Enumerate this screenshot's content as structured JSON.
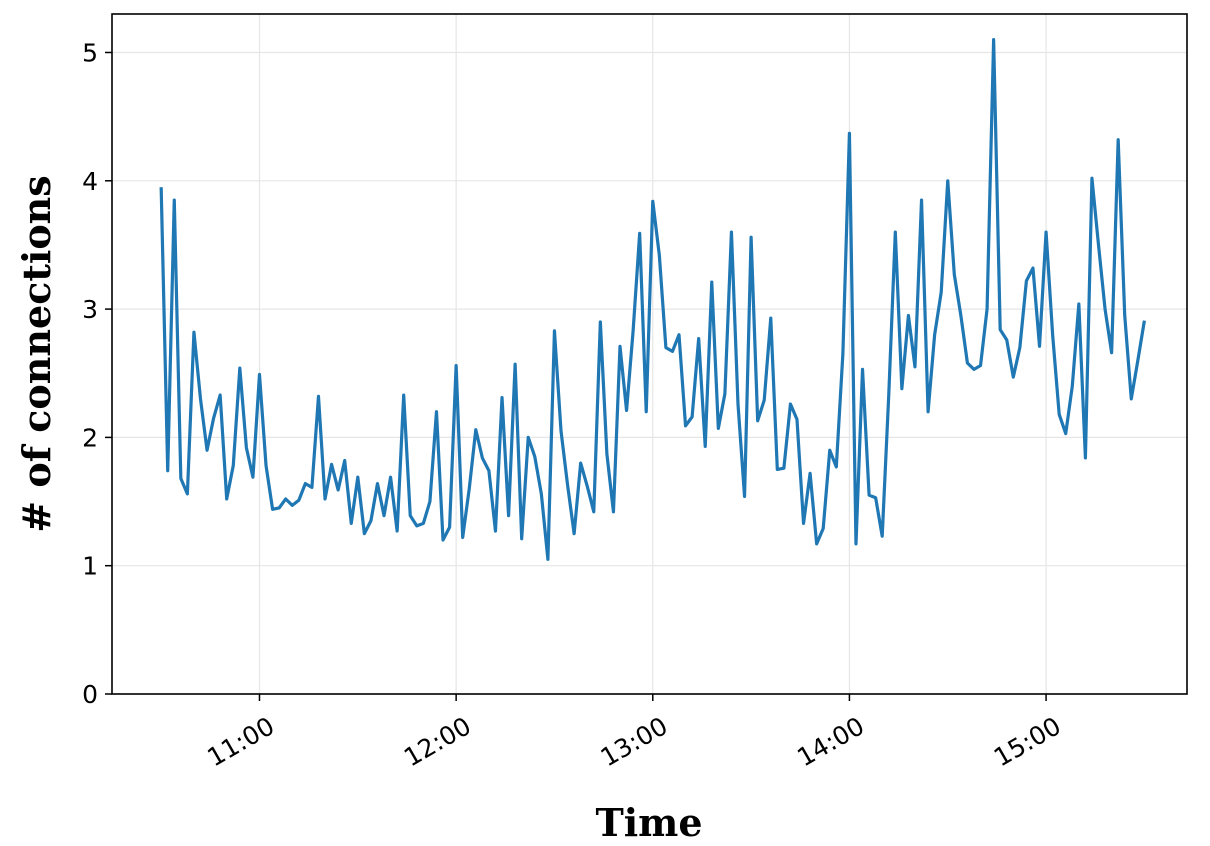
{
  "chart_data": {
    "type": "line",
    "xlabel": "Time",
    "ylabel": "# of connections",
    "x": [
      "10:30",
      "10:32",
      "10:34",
      "10:36",
      "10:38",
      "10:40",
      "10:42",
      "10:44",
      "10:46",
      "10:48",
      "10:50",
      "10:52",
      "10:54",
      "10:56",
      "10:58",
      "11:00",
      "11:02",
      "11:04",
      "11:06",
      "11:08",
      "11:10",
      "11:12",
      "11:14",
      "11:16",
      "11:18",
      "11:20",
      "11:22",
      "11:24",
      "11:26",
      "11:28",
      "11:30",
      "11:32",
      "11:34",
      "11:36",
      "11:38",
      "11:40",
      "11:42",
      "11:44",
      "11:46",
      "11:48",
      "11:50",
      "11:52",
      "11:54",
      "11:56",
      "11:58",
      "12:00",
      "12:02",
      "12:04",
      "12:06",
      "12:08",
      "12:10",
      "12:12",
      "12:14",
      "12:16",
      "12:18",
      "12:20",
      "12:22",
      "12:24",
      "12:26",
      "12:28",
      "12:30",
      "12:32",
      "12:34",
      "12:36",
      "12:38",
      "12:40",
      "12:42",
      "12:44",
      "12:46",
      "12:48",
      "12:50",
      "12:52",
      "12:54",
      "12:56",
      "12:58",
      "13:00",
      "13:02",
      "13:04",
      "13:06",
      "13:08",
      "13:10",
      "13:12",
      "13:14",
      "13:16",
      "13:18",
      "13:20",
      "13:22",
      "13:24",
      "13:26",
      "13:28",
      "13:30",
      "13:32",
      "13:34",
      "13:36",
      "13:38",
      "13:40",
      "13:42",
      "13:44",
      "13:46",
      "13:48",
      "13:50",
      "13:52",
      "13:54",
      "13:56",
      "13:58",
      "14:00",
      "14:02",
      "14:04",
      "14:06",
      "14:08",
      "14:10",
      "14:12",
      "14:14",
      "14:16",
      "14:18",
      "14:20",
      "14:22",
      "14:24",
      "14:26",
      "14:28",
      "14:30",
      "14:32",
      "14:34",
      "14:36",
      "14:38",
      "14:40",
      "14:42",
      "14:44",
      "14:46",
      "14:48",
      "14:50",
      "14:52",
      "14:54",
      "14:56",
      "14:58",
      "15:00",
      "15:02",
      "15:04",
      "15:06",
      "15:08",
      "15:10",
      "15:12",
      "15:14",
      "15:16",
      "15:18",
      "15:20",
      "15:22",
      "15:24",
      "15:26",
      "15:28",
      "15:30"
    ],
    "series": [
      {
        "name": "connections",
        "color": "#1f77b4",
        "values": [
          3.95,
          1.74,
          3.85,
          1.68,
          1.56,
          2.82,
          2.3,
          1.9,
          2.15,
          2.33,
          1.52,
          1.78,
          2.54,
          1.92,
          1.69,
          2.49,
          1.78,
          1.44,
          1.45,
          1.52,
          1.47,
          1.51,
          1.64,
          1.61,
          2.32,
          1.52,
          1.79,
          1.59,
          1.82,
          1.33,
          1.69,
          1.25,
          1.35,
          1.64,
          1.39,
          1.69,
          1.27,
          2.33,
          1.39,
          1.31,
          1.33,
          1.5,
          2.2,
          1.2,
          1.3,
          2.56,
          1.22,
          1.6,
          2.06,
          1.84,
          1.74,
          1.27,
          2.31,
          1.39,
          2.57,
          1.21,
          2.0,
          1.85,
          1.56,
          1.05,
          2.83,
          2.05,
          1.63,
          1.25,
          1.8,
          1.62,
          1.42,
          2.9,
          1.87,
          1.42,
          2.71,
          2.21,
          2.83,
          3.59,
          2.2,
          3.84,
          3.42,
          2.7,
          2.67,
          2.8,
          2.09,
          2.16,
          2.77,
          1.93,
          3.21,
          2.07,
          2.34,
          3.6,
          2.26,
          1.54,
          3.56,
          2.13,
          2.29,
          2.93,
          1.75,
          1.76,
          2.26,
          2.14,
          1.33,
          1.72,
          1.17,
          1.29,
          1.9,
          1.77,
          2.65,
          4.37,
          1.17,
          2.53,
          1.55,
          1.53,
          1.23,
          2.33,
          3.6,
          2.38,
          2.95,
          2.55,
          3.85,
          2.2,
          2.8,
          3.13,
          4.0,
          3.27,
          2.95,
          2.58,
          2.53,
          2.56,
          3.0,
          5.1,
          2.84,
          2.76,
          2.47,
          2.7,
          3.22,
          3.32,
          2.71,
          3.6,
          2.8,
          2.18,
          2.03,
          2.4,
          3.04,
          1.84,
          4.02,
          3.5,
          3.0,
          2.66,
          4.32,
          2.95,
          2.3,
          2.6,
          2.91
        ]
      }
    ],
    "xlim": [
      "10:15",
      "15:43"
    ],
    "xticks": [
      "11:00",
      "12:00",
      "13:00",
      "14:00",
      "15:00"
    ],
    "ylim": [
      0,
      5.3
    ],
    "yticks": [
      0,
      1,
      2,
      3,
      4,
      5
    ],
    "grid": true
  }
}
